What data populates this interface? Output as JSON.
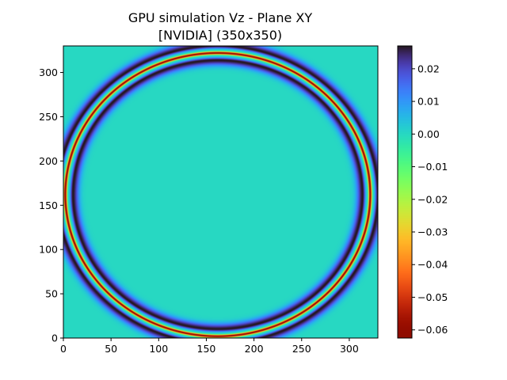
{
  "chart_data": {
    "type": "heatmap",
    "title": [
      "GPU simulation Vz - Plane XY",
      "[NVIDIA] (350x350)"
    ],
    "xlabel": "",
    "ylabel": "",
    "xlim": [
      0,
      330
    ],
    "ylim": [
      330,
      0
    ],
    "xticks": [
      "0",
      "50",
      "100",
      "150",
      "200",
      "250",
      "300"
    ],
    "xtick_values": [
      0,
      50,
      100,
      150,
      200,
      250,
      300
    ],
    "yticks": [
      "0",
      "50",
      "100",
      "150",
      "200",
      "250",
      "300"
    ],
    "ytick_values": [
      0,
      50,
      100,
      150,
      200,
      250,
      300
    ],
    "colormap": "turbo",
    "colorbar": {
      "vmin": -0.0625,
      "vmax": 0.027,
      "ticks": [
        "0.02",
        "0.01",
        "0.00",
        "−0.01",
        "−0.02",
        "−0.03",
        "−0.04",
        "−0.05",
        "−0.06"
      ],
      "tick_values": [
        0.02,
        0.01,
        0.0,
        -0.01,
        -0.02,
        -0.03,
        -0.04,
        -0.05,
        -0.06
      ]
    },
    "field": {
      "description_of_values": "circular wavefront centered in plane",
      "center": [
        162,
        162
      ],
      "front_radius": 160,
      "background_value": 0.0,
      "ring_profile": [
        {
          "offset": -8,
          "value": 0.027
        },
        {
          "offset": -3,
          "value": 0.0
        },
        {
          "offset": 0,
          "value": -0.062
        },
        {
          "offset": 3,
          "value": 0.0
        },
        {
          "offset": 8,
          "value": 0.027
        }
      ]
    }
  }
}
